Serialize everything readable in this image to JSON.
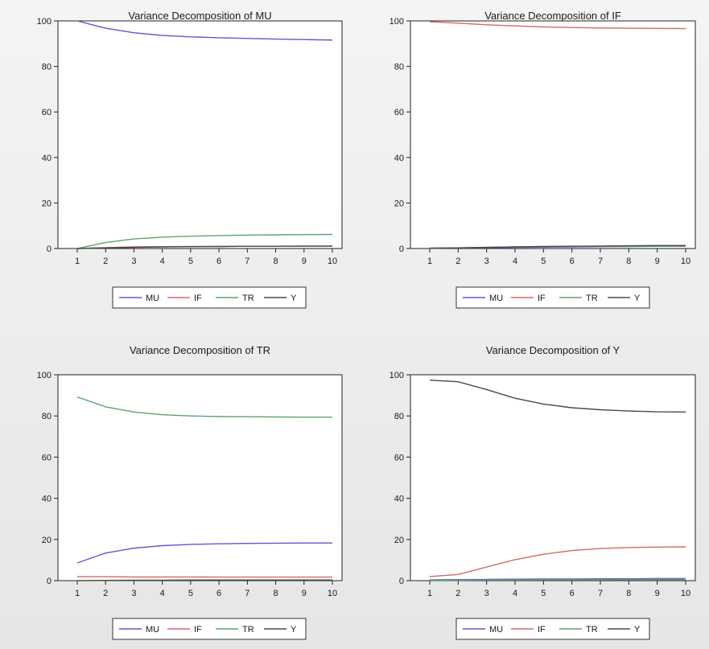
{
  "colors": {
    "MU": "#5a5acc",
    "IF": "#d06a6a",
    "TR": "#5aa66e",
    "Y": "#4a4a4a"
  },
  "chart_data": [
    {
      "type": "line",
      "title": "Variance Decomposition of MU",
      "x": [
        1,
        2,
        3,
        4,
        5,
        6,
        7,
        8,
        9,
        10
      ],
      "x_ticks": [
        "1",
        "2",
        "3",
        "4",
        "5",
        "6",
        "7",
        "8",
        "9",
        "10"
      ],
      "y_ticks": [
        "0",
        "20",
        "40",
        "60",
        "80",
        "100"
      ],
      "ylim": [
        0,
        100
      ],
      "legend": "bottom",
      "legend_entries": [
        "MU",
        "IF",
        "TR",
        "Y"
      ],
      "series": [
        {
          "name": "MU",
          "values": [
            100,
            96.8,
            94.8,
            93.6,
            93.0,
            92.6,
            92.3,
            92.0,
            91.8,
            91.6
          ]
        },
        {
          "name": "IF",
          "values": [
            0,
            0.4,
            0.7,
            0.8,
            0.9,
            0.9,
            1.0,
            1.0,
            1.0,
            1.0
          ]
        },
        {
          "name": "TR",
          "values": [
            0,
            2.6,
            4.2,
            5.0,
            5.4,
            5.7,
            5.9,
            6.0,
            6.1,
            6.2
          ]
        },
        {
          "name": "Y",
          "values": [
            0,
            0.3,
            0.5,
            0.7,
            0.8,
            0.9,
            1.0,
            1.0,
            1.1,
            1.1
          ]
        }
      ]
    },
    {
      "type": "line",
      "title": "Variance Decomposition of IF",
      "x": [
        1,
        2,
        3,
        4,
        5,
        6,
        7,
        8,
        9,
        10
      ],
      "x_ticks": [
        "1",
        "2",
        "3",
        "4",
        "5",
        "6",
        "7",
        "8",
        "9",
        "10"
      ],
      "y_ticks": [
        "0",
        "20",
        "40",
        "60",
        "80",
        "100"
      ],
      "ylim": [
        0,
        100
      ],
      "legend": "bottom",
      "legend_entries": [
        "MU",
        "IF",
        "TR",
        "Y"
      ],
      "series": [
        {
          "name": "MU",
          "values": [
            0.2,
            0.3,
            0.4,
            0.5,
            0.6,
            0.7,
            0.8,
            0.9,
            1.0,
            1.0
          ]
        },
        {
          "name": "IF",
          "values": [
            99.6,
            99.0,
            98.3,
            97.8,
            97.4,
            97.1,
            96.9,
            96.8,
            96.7,
            96.6
          ]
        },
        {
          "name": "TR",
          "values": [
            0.1,
            0.3,
            0.5,
            0.7,
            0.8,
            0.9,
            1.0,
            1.0,
            1.1,
            1.1
          ]
        },
        {
          "name": "Y",
          "values": [
            0.1,
            0.3,
            0.5,
            0.7,
            0.9,
            1.0,
            1.1,
            1.2,
            1.3,
            1.3
          ]
        }
      ]
    },
    {
      "type": "line",
      "title": "Variance Decomposition of TR",
      "x": [
        1,
        2,
        3,
        4,
        5,
        6,
        7,
        8,
        9,
        10
      ],
      "x_ticks": [
        "1",
        "2",
        "3",
        "4",
        "5",
        "6",
        "7",
        "8",
        "9",
        "10"
      ],
      "y_ticks": [
        "0",
        "20",
        "40",
        "60",
        "80",
        "100"
      ],
      "ylim": [
        0,
        100
      ],
      "legend": "bottom",
      "legend_entries": [
        "MU",
        "IF",
        "TR",
        "Y"
      ],
      "series": [
        {
          "name": "MU",
          "values": [
            8.6,
            13.4,
            15.8,
            17.0,
            17.6,
            17.9,
            18.1,
            18.2,
            18.3,
            18.3
          ]
        },
        {
          "name": "IF",
          "values": [
            2.0,
            1.9,
            1.8,
            1.8,
            1.8,
            1.7,
            1.7,
            1.7,
            1.7,
            1.7
          ]
        },
        {
          "name": "TR",
          "values": [
            89.2,
            84.4,
            81.9,
            80.6,
            80.0,
            79.7,
            79.6,
            79.5,
            79.4,
            79.4
          ]
        },
        {
          "name": "Y",
          "values": [
            0,
            0.1,
            0.2,
            0.2,
            0.3,
            0.3,
            0.3,
            0.3,
            0.3,
            0.3
          ]
        }
      ]
    },
    {
      "type": "line",
      "title": "Variance Decomposition of Y",
      "x": [
        1,
        2,
        3,
        4,
        5,
        6,
        7,
        8,
        9,
        10
      ],
      "x_ticks": [
        "1",
        "2",
        "3",
        "4",
        "5",
        "6",
        "7",
        "8",
        "9",
        "10"
      ],
      "y_ticks": [
        "0",
        "20",
        "40",
        "60",
        "80",
        "100"
      ],
      "ylim": [
        0,
        100
      ],
      "legend": "bottom",
      "legend_entries": [
        "MU",
        "IF",
        "TR",
        "Y"
      ],
      "series": [
        {
          "name": "MU",
          "values": [
            0.4,
            0.5,
            0.6,
            0.7,
            0.8,
            0.8,
            0.9,
            0.9,
            1.0,
            1.0
          ]
        },
        {
          "name": "IF",
          "values": [
            2.0,
            3.0,
            6.6,
            10.2,
            12.8,
            14.6,
            15.6,
            16.1,
            16.3,
            16.4
          ]
        },
        {
          "name": "TR",
          "values": [
            0.2,
            0.2,
            0.3,
            0.3,
            0.4,
            0.4,
            0.4,
            0.5,
            0.5,
            0.5
          ]
        },
        {
          "name": "Y",
          "values": [
            97.4,
            96.6,
            92.8,
            88.6,
            85.8,
            84.0,
            83.0,
            82.4,
            82.0,
            81.9
          ]
        }
      ]
    }
  ]
}
